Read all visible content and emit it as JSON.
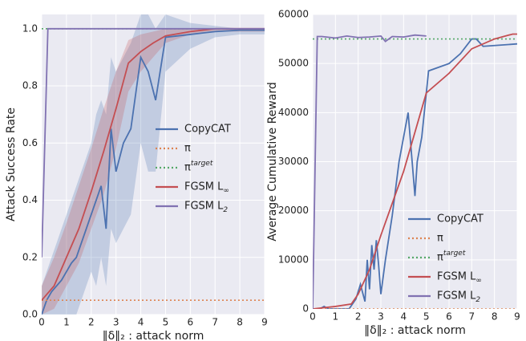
{
  "chart_data": [
    {
      "type": "line",
      "xlabel": "‖δ‖₂ : attack norm",
      "ylabel": "Attack Success Rate",
      "xlim": [
        0,
        9
      ],
      "ylim": [
        0,
        1.05
      ],
      "xticks": [
        0,
        1,
        2,
        3,
        4,
        5,
        6,
        7,
        8,
        9
      ],
      "yticks": [
        {
          "value": 0,
          "label": "0.0"
        },
        0.2,
        0.4,
        0.6,
        0.8,
        {
          "value": 1,
          "label": "1.0"
        }
      ],
      "grid": true,
      "legend": "center right",
      "series": [
        {
          "name": "CopyCAT",
          "color": "#4c72b0",
          "style": "solid",
          "x": [
            0,
            0.2,
            0.4,
            0.6,
            0.8,
            1.0,
            1.2,
            1.4,
            1.6,
            1.8,
            2.0,
            2.2,
            2.4,
            2.6,
            2.8,
            3.0,
            3.3,
            3.6,
            4.0,
            4.3,
            4.6,
            5.0,
            6.0,
            7.0,
            8.0,
            9.0
          ],
          "values": [
            0,
            0.05,
            0.08,
            0.1,
            0.12,
            0.15,
            0.18,
            0.2,
            0.25,
            0.3,
            0.35,
            0.4,
            0.45,
            0.3,
            0.65,
            0.5,
            0.6,
            0.65,
            0.9,
            0.85,
            0.75,
            0.97,
            0.98,
            0.99,
            0.995,
            0.995
          ],
          "lower": [
            0,
            0,
            0,
            0,
            0,
            0,
            0,
            0,
            0.05,
            0.1,
            0.15,
            0.1,
            0.2,
            0.1,
            0.3,
            0.25,
            0.3,
            0.35,
            0.6,
            0.5,
            0.5,
            0.85,
            0.93,
            0.97,
            0.98,
            0.98
          ],
          "upper": [
            0.1,
            0.15,
            0.2,
            0.25,
            0.3,
            0.35,
            0.4,
            0.45,
            0.5,
            0.55,
            0.6,
            0.7,
            0.75,
            0.7,
            0.9,
            0.85,
            0.9,
            0.95,
            1.05,
            1.05,
            1.0,
            1.05,
            1.02,
            1.01,
            1.0,
            1.0
          ]
        },
        {
          "name": "π",
          "color": "#dd8452",
          "style": "dotted",
          "x": [
            0,
            9
          ],
          "values": [
            0.05,
            0.05
          ]
        },
        {
          "name": "π^target",
          "color": "#55a868",
          "style": "dotted",
          "x": [
            0,
            9
          ],
          "values": [
            1.0,
            1.0
          ]
        },
        {
          "name": "FGSM L_∞",
          "color": "#c44e52",
          "style": "solid",
          "x": [
            0,
            0.5,
            1,
            1.5,
            2,
            2.5,
            3,
            3.5,
            4,
            4.5,
            5,
            6,
            7,
            8,
            9
          ],
          "values": [
            0.05,
            0.1,
            0.2,
            0.3,
            0.43,
            0.57,
            0.72,
            0.88,
            0.92,
            0.95,
            0.975,
            0.99,
            1.0,
            1.0,
            1.0
          ],
          "lower": [
            0,
            0.02,
            0.1,
            0.18,
            0.3,
            0.42,
            0.58,
            0.78,
            0.85,
            0.9,
            0.95,
            0.98,
            0.99,
            0.99,
            0.99
          ],
          "upper": [
            0.1,
            0.2,
            0.32,
            0.45,
            0.58,
            0.72,
            0.85,
            0.96,
            0.98,
            0.99,
            1.0,
            1.0,
            1.0,
            1.0,
            1.0
          ]
        },
        {
          "name": "FGSM L_2",
          "color": "#8172b2",
          "style": "solid",
          "x": [
            0,
            0.25,
            9
          ],
          "values": [
            0.2,
            1.0,
            1.0
          ]
        }
      ]
    },
    {
      "type": "line",
      "xlabel": "‖δ‖₂ : attack norm",
      "ylabel": "Average Cumulative Reward",
      "xlim": [
        0,
        9
      ],
      "ylim": [
        0,
        60000
      ],
      "xticks": [
        0,
        1,
        2,
        3,
        4,
        5,
        6,
        7,
        8,
        9
      ],
      "yticks": [
        0,
        10000,
        20000,
        30000,
        40000,
        50000,
        60000
      ],
      "grid": true,
      "legend": "lower right",
      "series": [
        {
          "name": "CopyCAT",
          "color": "#4c72b0",
          "style": "solid",
          "x": [
            0,
            0.1,
            0.3,
            0.5,
            0.7,
            1,
            1.3,
            1.6,
            1.9,
            2.1,
            2.3,
            2.4,
            2.5,
            2.6,
            2.7,
            2.8,
            2.9,
            3.0,
            3.2,
            3.5,
            3.8,
            4.2,
            4.5,
            4.6,
            4.8,
            5.1,
            6,
            6.5,
            7.0,
            7.2,
            7.5,
            9
          ],
          "values": [
            0,
            0,
            0,
            500,
            0,
            0,
            0,
            0,
            2000,
            5000,
            1500,
            10000,
            4000,
            13000,
            8000,
            14000,
            9000,
            3000,
            10000,
            19000,
            30000,
            40000,
            23000,
            30000,
            35000,
            48500,
            50000,
            52000,
            55000,
            55000,
            53500,
            54000
          ]
        },
        {
          "name": "π",
          "color": "#dd8452",
          "style": "dotted",
          "x": [
            0,
            9
          ],
          "values": [
            0,
            0
          ]
        },
        {
          "name": "π^target",
          "color": "#55a868",
          "style": "dotted",
          "x": [
            0,
            9
          ],
          "values": [
            55000,
            55000
          ]
        },
        {
          "name": "FGSM L_∞",
          "color": "#c44e52",
          "style": "solid",
          "x": [
            0,
            1,
            1.7,
            2,
            2.5,
            3,
            4,
            5,
            6,
            7,
            8,
            8.8,
            9
          ],
          "values": [
            0,
            500,
            1000,
            3000,
            8000,
            15000,
            28000,
            44000,
            48000,
            53000,
            55000,
            56000,
            56000
          ]
        },
        {
          "name": "FGSM L_2",
          "color": "#8172b2",
          "style": "solid",
          "x": [
            0,
            0.2,
            0.4,
            1,
            1.5,
            2,
            2.5,
            3,
            3.2,
            3.5,
            4,
            4.5,
            5
          ],
          "values": [
            0,
            55500,
            55500,
            55200,
            55600,
            55300,
            55400,
            55600,
            54500,
            55500,
            55400,
            55800,
            55600
          ]
        }
      ]
    }
  ]
}
